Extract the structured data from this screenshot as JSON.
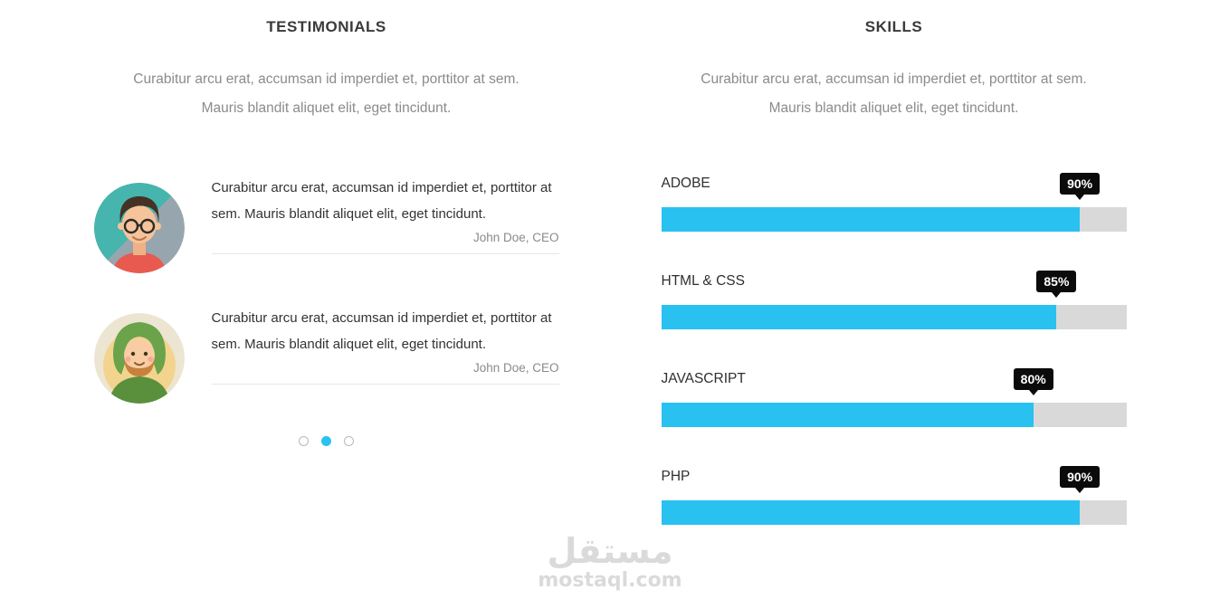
{
  "testimonials": {
    "title": "TESTIMONIALS",
    "subtitle_line1": "Curabitur arcu erat, accumsan id imperdiet et, porttitor at sem.",
    "subtitle_line2": "Mauris blandit aliquet elit, eget tincidunt.",
    "items": [
      {
        "text": "Curabitur arcu erat, accumsan id imperdiet et, porttitor at sem. Mauris blandit aliquet elit, eget tincidunt.",
        "author": "John Doe, CEO",
        "avatar": "man-glasses-avatar"
      },
      {
        "text": "Curabitur arcu erat, accumsan id imperdiet et, porttitor at sem. Mauris blandit aliquet elit, eget tincidunt.",
        "author": "John Doe, CEO",
        "avatar": "man-hood-beard-avatar"
      }
    ],
    "carousel": {
      "dot_count": 3,
      "active_index": 1
    }
  },
  "skills": {
    "title": "SKILLS",
    "subtitle_line1": "Curabitur arcu erat, accumsan id imperdiet et, porttitor at sem.",
    "subtitle_line2": "Mauris blandit aliquet elit, eget tincidunt.",
    "items": [
      {
        "label": "ADOBE",
        "percent": 90,
        "percent_label": "90%"
      },
      {
        "label": "HTML & CSS",
        "percent": 85,
        "percent_label": "85%"
      },
      {
        "label": "JAVASCRIPT",
        "percent": 80,
        "percent_label": "80%"
      },
      {
        "label": "PHP",
        "percent": 90,
        "percent_label": "90%"
      }
    ]
  },
  "watermark": {
    "arabic": "مستقل",
    "latin": "mostaql.com"
  },
  "colors": {
    "accent": "#29c1f0",
    "bar_track": "#d9d9d9",
    "tooltip_bg": "#0b0b0b"
  }
}
